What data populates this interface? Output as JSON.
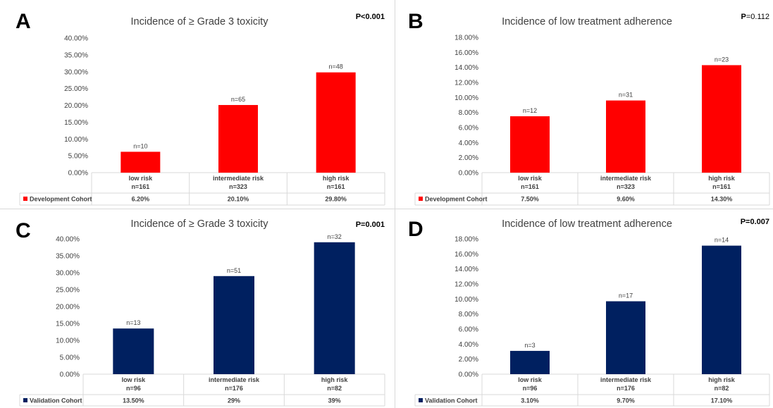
{
  "colors": {
    "development": "#ff0000",
    "validation": "#002060"
  },
  "chart_data": [
    {
      "type": "bar",
      "panel": "A",
      "title": "Incidence of ≥ Grade 3 toxicity",
      "p_value": "P<0.001",
      "p_bold_prefix": "",
      "p_rest": "P<0.001",
      "categories": [
        "low risk",
        "intermediate risk",
        "high risk"
      ],
      "category_n": [
        "n=161",
        "n=323",
        "n=161"
      ],
      "ylim": [
        0,
        40
      ],
      "yticks": [
        "0.00%",
        "5.00%",
        "10.00%",
        "15.00%",
        "20.00%",
        "25.00%",
        "30.00%",
        "35.00%",
        "40.00%"
      ],
      "series": [
        {
          "name": "Development Cohort",
          "color": "#ff0000",
          "values": [
            6.2,
            20.1,
            29.8
          ],
          "value_labels": [
            "6.20%",
            "20.10%",
            "29.80%"
          ],
          "data_labels": [
            "n=10",
            "n=65",
            "n=48"
          ]
        }
      ]
    },
    {
      "type": "bar",
      "panel": "B",
      "title": "Incidence of low treatment adherence",
      "p_value": "P=0.112",
      "p_bold_prefix": "P",
      "p_rest": "=0.112",
      "categories": [
        "low risk",
        "intermediate risk",
        "high risk"
      ],
      "category_n": [
        "n=161",
        "n=323",
        "n=161"
      ],
      "ylim": [
        0,
        18
      ],
      "yticks": [
        "0.00%",
        "2.00%",
        "4.00%",
        "6.00%",
        "8.00%",
        "10.00%",
        "12.00%",
        "14.00%",
        "16.00%",
        "18.00%"
      ],
      "series": [
        {
          "name": "Development Cohort",
          "color": "#ff0000",
          "values": [
            7.5,
            9.6,
            14.3
          ],
          "value_labels": [
            "7.50%",
            "9.60%",
            "14.30%"
          ],
          "data_labels": [
            "n=12",
            "n=31",
            "n=23"
          ]
        }
      ]
    },
    {
      "type": "bar",
      "panel": "C",
      "title": "Incidence of ≥ Grade 3 toxicity",
      "p_value": "P=0.001",
      "p_bold_prefix": "",
      "p_rest": "P=0.001",
      "categories": [
        "low risk",
        "intermediate risk",
        "high risk"
      ],
      "category_n": [
        "n=96",
        "n=176",
        "n=82"
      ],
      "ylim": [
        0,
        40
      ],
      "yticks": [
        "0.00%",
        "5.00%",
        "10.00%",
        "15.00%",
        "20.00%",
        "25.00%",
        "30.00%",
        "35.00%",
        "40.00%"
      ],
      "series": [
        {
          "name": "Validation Cohort",
          "color": "#002060",
          "values": [
            13.5,
            29,
            39
          ],
          "value_labels": [
            "13.50%",
            "29%",
            "39%"
          ],
          "data_labels": [
            "n=13",
            "n=51",
            "n=32"
          ]
        }
      ]
    },
    {
      "type": "bar",
      "panel": "D",
      "title": "Incidence of low treatment adherence",
      "p_value": "P=0.007",
      "p_bold_prefix": "",
      "p_rest": "P=0.007",
      "categories": [
        "low risk",
        "intermediate risk",
        "high risk"
      ],
      "category_n": [
        "n=96",
        "n=176",
        "n=82"
      ],
      "ylim": [
        0,
        18
      ],
      "yticks": [
        "0.00%",
        "2.00%",
        "4.00%",
        "6.00%",
        "8.00%",
        "10.00%",
        "12.00%",
        "14.00%",
        "16.00%",
        "18.00%"
      ],
      "series": [
        {
          "name": "Validation Cohort",
          "color": "#002060",
          "values": [
            3.1,
            9.7,
            17.1
          ],
          "value_labels": [
            "3.10%",
            "9.70%",
            "17.10%"
          ],
          "data_labels": [
            "n=3",
            "n=17",
            "n=14"
          ]
        }
      ]
    }
  ]
}
